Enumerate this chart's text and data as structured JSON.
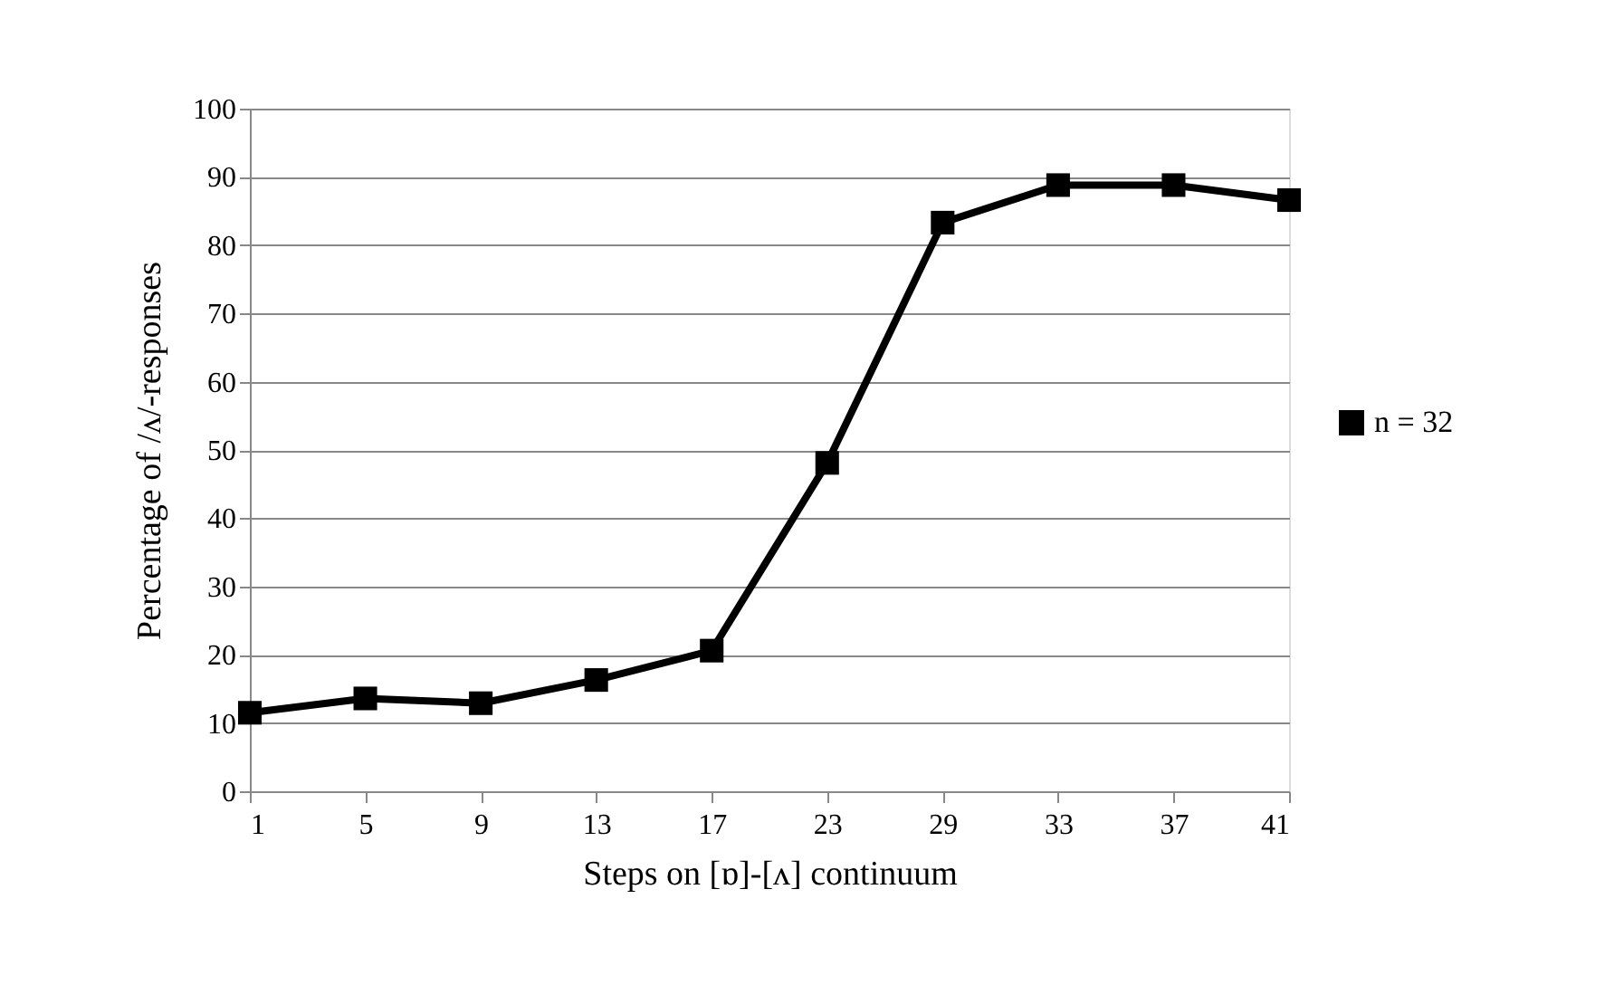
{
  "chart_data": {
    "type": "line",
    "xlabel": "Steps on [ɒ]-[ʌ] continuum",
    "ylabel": "Percentage of /ʌ/-responses",
    "categories": [
      "1",
      "5",
      "9",
      "13",
      "17",
      "23",
      "29",
      "33",
      "37",
      "41"
    ],
    "series": [
      {
        "name": "n = 32",
        "color": "#000000",
        "values": [
          11.5,
          13.6,
          12.9,
          16.3,
          20.6,
          48.1,
          83.3,
          88.8,
          88.8,
          86.6
        ]
      }
    ],
    "ylim": [
      0,
      100
    ],
    "yticks": [
      0,
      10,
      20,
      30,
      40,
      50,
      60,
      70,
      80,
      90,
      100
    ],
    "grid": "y",
    "legend": "right",
    "marker": "square",
    "line_style": "solid"
  }
}
